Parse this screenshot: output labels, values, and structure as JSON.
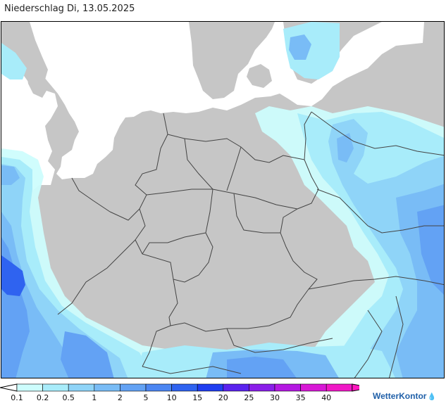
{
  "header": {
    "title": "Niederschlag Di, 13.05.2025"
  },
  "legend": {
    "classes": [
      {
        "label": "0.1",
        "color": "#cdfdfd"
      },
      {
        "label": "0.2",
        "color": "#a8ecfa"
      },
      {
        "label": "0.5",
        "color": "#8fd4f8"
      },
      {
        "label": "1",
        "color": "#79bcf6"
      },
      {
        "label": "2",
        "color": "#63a2f4"
      },
      {
        "label": "5",
        "color": "#4c86f2"
      },
      {
        "label": "10",
        "color": "#2f63f0"
      },
      {
        "label": "15",
        "color": "#1f3df0"
      },
      {
        "label": "20",
        "color": "#5a22ee"
      },
      {
        "label": "25",
        "color": "#8a1ee9"
      },
      {
        "label": "30",
        "color": "#b418e2"
      },
      {
        "label": "35",
        "color": "#d818d6"
      },
      {
        "label": "40",
        "color": "#f018c6"
      }
    ],
    "low_arrow_color": "#ffffff",
    "high_arrow_color": "#ff18c0"
  },
  "colors": {
    "land": "#c6c6c6",
    "sea": "#ffffff",
    "border": "#444444"
  },
  "brand": {
    "name": "WetterKontor",
    "logo_icon": "droplet-icon"
  }
}
